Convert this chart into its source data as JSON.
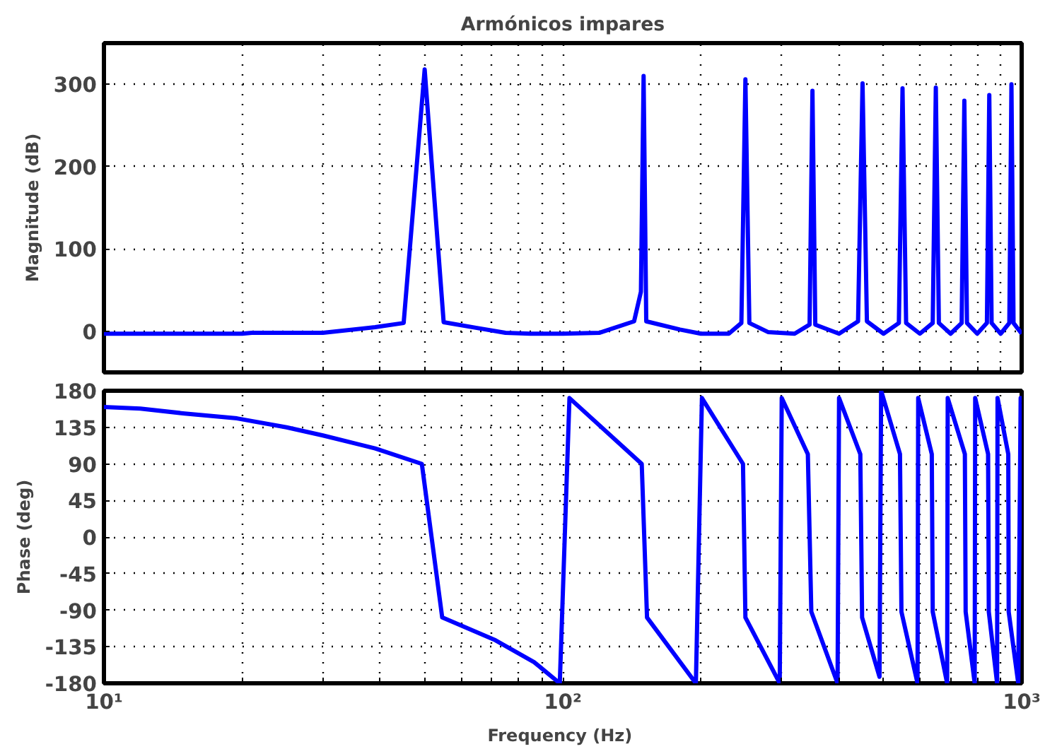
{
  "chart_data": [
    {
      "type": "line",
      "title": "Armónicos impares",
      "ylabel": "Magnitude (dB)",
      "log": "x",
      "grid": true,
      "tick_labels": "y",
      "marker": "none",
      "line_style": "solid",
      "xlim": [
        10,
        1000
      ],
      "ylim": [
        -50,
        350
      ],
      "xticks": [
        {
          "value": 10,
          "label": null
        },
        {
          "value": 20,
          "label": null
        },
        {
          "value": 30,
          "label": null
        },
        {
          "value": 40,
          "label": null
        },
        {
          "value": 50,
          "label": null
        },
        {
          "value": 60,
          "label": null
        },
        {
          "value": 70,
          "label": null
        },
        {
          "value": 80,
          "label": null
        },
        {
          "value": 90,
          "label": null
        },
        {
          "value": 100,
          "label": null
        },
        {
          "value": 200,
          "label": null
        },
        {
          "value": 300,
          "label": null
        },
        {
          "value": 400,
          "label": null
        },
        {
          "value": 500,
          "label": null
        },
        {
          "value": 600,
          "label": null
        },
        {
          "value": 700,
          "label": null
        },
        {
          "value": 800,
          "label": null
        },
        {
          "value": 900,
          "label": null
        },
        {
          "value": 1000,
          "label": null
        }
      ],
      "yticks": [
        0,
        100,
        200,
        300
      ],
      "series": [
        {
          "color": "#0000ff",
          "x": [
            10,
            20,
            21,
            30,
            39,
            45,
            50,
            55,
            65,
            75,
            85,
            100,
            120,
            143,
            148,
            150,
            152,
            180,
            200,
            230,
            245,
            250,
            255,
            280,
            320,
            345,
            350,
            355,
            400,
            440,
            450,
            460,
            500,
            540,
            550,
            560,
            600,
            640,
            650,
            660,
            700,
            740,
            750,
            760,
            800,
            840,
            850,
            860,
            900,
            940,
            950,
            960,
            1000
          ],
          "values": [
            -3,
            -3,
            -2,
            -2,
            5,
            10,
            318,
            11,
            4,
            -2,
            -3,
            -3,
            -2,
            12,
            48,
            310,
            12,
            2,
            -3,
            -3,
            10,
            306,
            10,
            -1,
            -3,
            8,
            292,
            8,
            -3,
            12,
            301,
            12,
            -3,
            10,
            295,
            10,
            -3,
            10,
            296,
            10,
            -3,
            10,
            280,
            10,
            -3,
            10,
            287,
            10,
            -3,
            10,
            300,
            10,
            -3
          ]
        }
      ]
    },
    {
      "type": "line",
      "xlabel": "Frequency  (Hz)",
      "ylabel": "Phase (deg)",
      "log": "x",
      "grid": true,
      "marker": "none",
      "line_style": "solid",
      "xlim": [
        10,
        1000
      ],
      "ylim": [
        -180,
        180
      ],
      "xticks": [
        {
          "value": 10,
          "label": "10¹"
        },
        {
          "value": 20,
          "label": null
        },
        {
          "value": 30,
          "label": null
        },
        {
          "value": 40,
          "label": null
        },
        {
          "value": 50,
          "label": null
        },
        {
          "value": 60,
          "label": null
        },
        {
          "value": 70,
          "label": null
        },
        {
          "value": 80,
          "label": null
        },
        {
          "value": 90,
          "label": null
        },
        {
          "value": 100,
          "label": "10²"
        },
        {
          "value": 200,
          "label": null
        },
        {
          "value": 300,
          "label": null
        },
        {
          "value": 400,
          "label": null
        },
        {
          "value": 500,
          "label": null
        },
        {
          "value": 600,
          "label": null
        },
        {
          "value": 700,
          "label": null
        },
        {
          "value": 800,
          "label": null
        },
        {
          "value": 900,
          "label": null
        },
        {
          "value": 1000,
          "label": "10³"
        }
      ],
      "yticks": [
        -180,
        -135,
        -90,
        -45,
        0,
        45,
        90,
        135,
        180
      ],
      "series": [
        {
          "color": "#0000ff",
          "x": [
            10,
            12,
            15,
            19.5,
            25,
            30,
            39,
            49.3,
            54.6,
            71.3,
            86.6,
            98.5,
            103.4,
            148.6,
            152.6,
            195,
            201,
            247,
            250,
            297,
            300,
            342,
            348,
            397,
            400,
            445,
            449,
            490,
            494,
            543,
            547,
            593,
            595,
            637,
            640,
            688,
            690,
            752,
            755,
            790,
            792,
            845,
            848,
            884,
            886,
            935,
            937,
            983,
            995,
            1000
          ],
          "values": [
            160,
            158,
            152,
            146,
            135,
            125,
            109,
            90,
            -99,
            -127,
            -154,
            -180,
            171,
            90,
            -99,
            -180,
            171,
            90,
            -99,
            -180,
            171,
            102,
            -92,
            -180,
            171,
            102,
            -99,
            -172,
            180,
            102,
            -92,
            -180,
            171,
            102,
            -92,
            -180,
            171,
            102,
            -92,
            -180,
            171,
            102,
            -92,
            -180,
            171,
            102,
            -92,
            -180,
            171,
            165
          ]
        }
      ]
    }
  ]
}
